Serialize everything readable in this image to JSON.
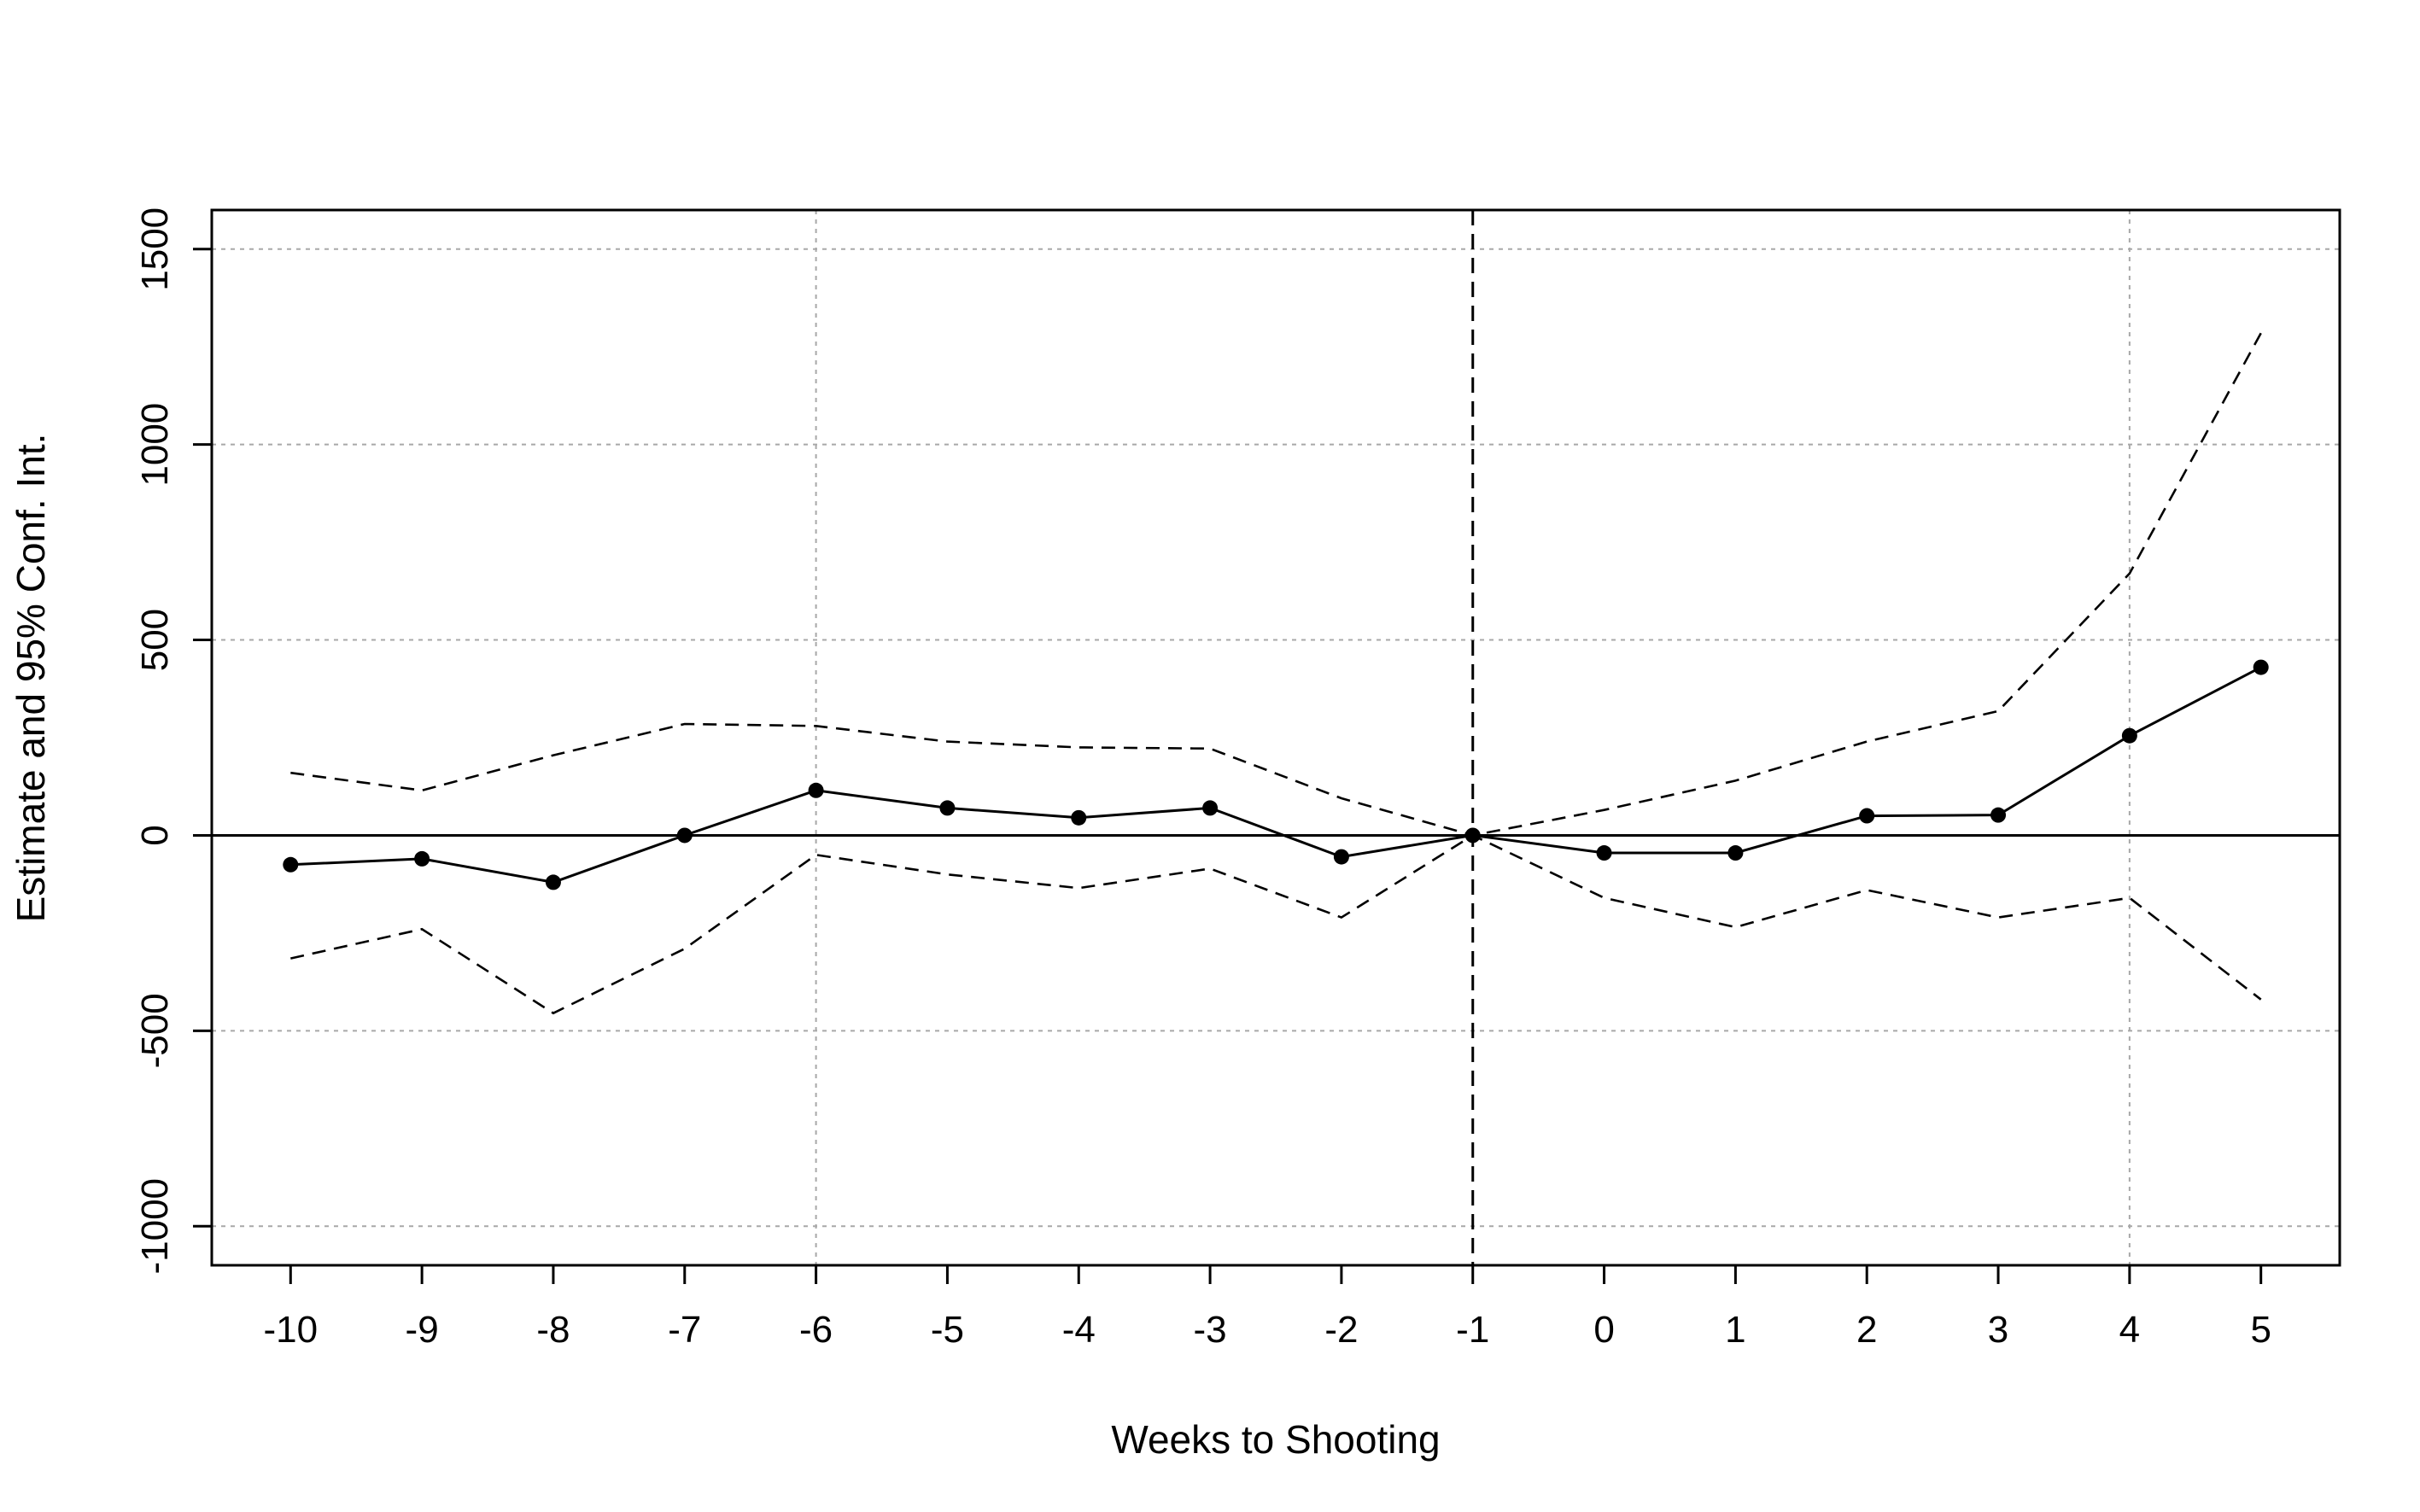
{
  "chart_data": {
    "type": "line",
    "title": "",
    "xlabel": "Weeks to Shooting",
    "ylabel": "Estimate and 95% Conf. Int.",
    "x": [
      -10,
      -9,
      -8,
      -7,
      -6,
      -5,
      -4,
      -3,
      -2,
      -1,
      0,
      1,
      2,
      3,
      4,
      5
    ],
    "series": [
      {
        "role": "estimate",
        "style": "solid-with-points",
        "values": [
          -75,
          -60,
          -120,
          0,
          115,
          70,
          45,
          70,
          -55,
          0,
          -45,
          -45,
          50,
          52,
          255,
          430
        ]
      },
      {
        "role": "upper",
        "style": "dashed",
        "values": [
          160,
          115,
          205,
          285,
          280,
          240,
          225,
          222,
          95,
          0,
          65,
          140,
          240,
          318,
          670,
          1285
        ]
      },
      {
        "role": "lower",
        "style": "dashed",
        "values": [
          -315,
          -240,
          -455,
          -290,
          -50,
          -100,
          -135,
          -85,
          -210,
          0,
          -160,
          -235,
          -140,
          -210,
          -160,
          -420
        ]
      }
    ],
    "xlim": [
      -10.6,
      5.6
    ],
    "ylim": [
      -1100,
      1600
    ],
    "xticks": [
      "-10",
      "-9",
      "-8",
      "-7",
      "-6",
      "-5",
      "-4",
      "-3",
      "-2",
      "-1",
      "0",
      "1",
      "2",
      "3",
      "4",
      "5"
    ],
    "yticks": [
      "-1000",
      "-500",
      "0",
      "500",
      "1000",
      "1500"
    ],
    "h_gridlines": [
      -1000,
      -500,
      500,
      1000,
      1500
    ],
    "v_gridlines": [
      -6,
      4
    ],
    "reference_hline": 0,
    "reference_vline": -1,
    "grid": true,
    "legend": "none"
  }
}
